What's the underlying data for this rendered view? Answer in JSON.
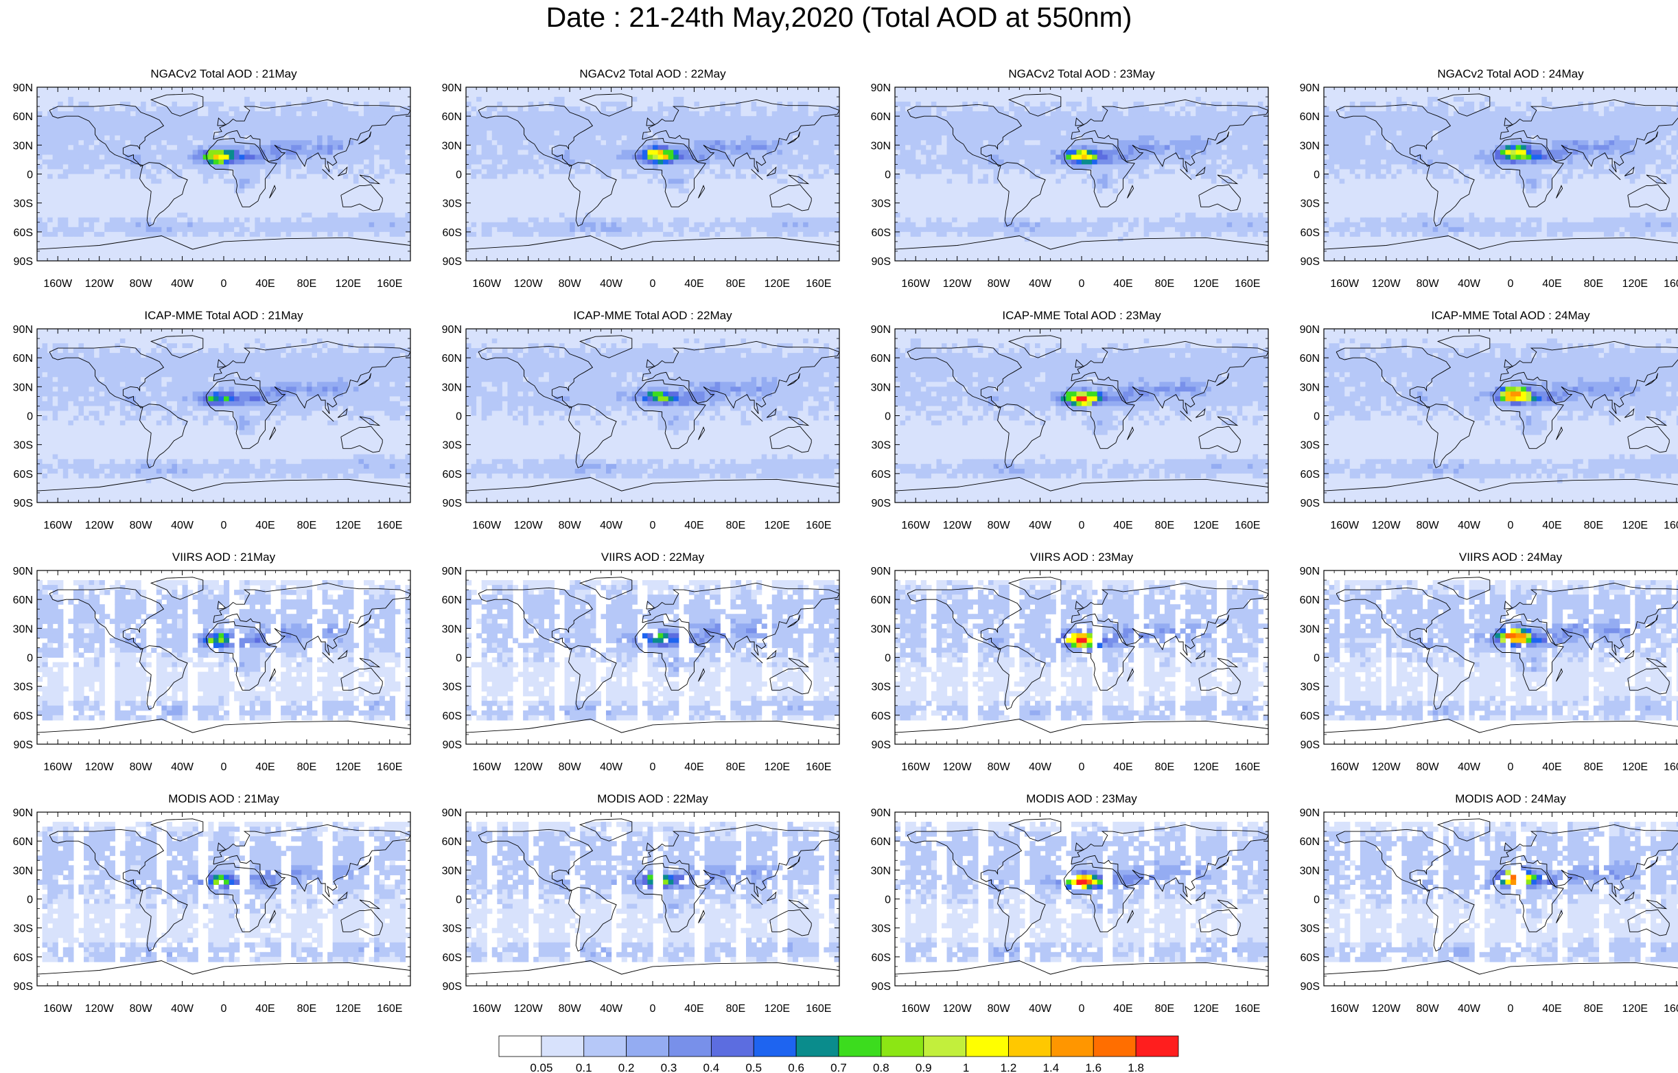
{
  "title": "Date : 21-24th May,2020 (Total AOD at 550nm)",
  "chart_data": {
    "type": "heatmap",
    "layout": "4x4 grid of global maps (equidistant cylindrical)",
    "lon_ticks": [
      "160W",
      "120W",
      "80W",
      "40W",
      "0",
      "40E",
      "80E",
      "120E",
      "160E"
    ],
    "lat_ticks": [
      "90N",
      "60N",
      "30N",
      "0",
      "30S",
      "60S",
      "90S"
    ],
    "xlim": [
      -180,
      180
    ],
    "ylim": [
      -90,
      90
    ],
    "panels": [
      {
        "title": "NGACv2 Total AOD : 21May",
        "source": "NGACv2",
        "day": 21
      },
      {
        "title": "NGACv2 Total AOD : 22May",
        "source": "NGACv2",
        "day": 22
      },
      {
        "title": "NGACv2 Total AOD : 23May",
        "source": "NGACv2",
        "day": 23
      },
      {
        "title": "NGACv2 Total AOD : 24May",
        "source": "NGACv2",
        "day": 24
      },
      {
        "title": "ICAP-MME Total AOD : 21May",
        "source": "ICAP-MME",
        "day": 21
      },
      {
        "title": "ICAP-MME Total AOD : 22May",
        "source": "ICAP-MME",
        "day": 22
      },
      {
        "title": "ICAP-MME Total AOD : 23May",
        "source": "ICAP-MME",
        "day": 23
      },
      {
        "title": "ICAP-MME Total AOD : 24May",
        "source": "ICAP-MME",
        "day": 24
      },
      {
        "title": "VIIRS AOD : 21May",
        "source": "VIIRS",
        "day": 21
      },
      {
        "title": "VIIRS AOD : 22May",
        "source": "VIIRS",
        "day": 22
      },
      {
        "title": "VIIRS AOD : 23May",
        "source": "VIIRS",
        "day": 23
      },
      {
        "title": "VIIRS AOD : 24May",
        "source": "VIIRS",
        "day": 24
      },
      {
        "title": "MODIS AOD : 21May",
        "source": "MODIS",
        "day": 21
      },
      {
        "title": "MODIS AOD : 22May",
        "source": "MODIS",
        "day": 22
      },
      {
        "title": "MODIS AOD : 23May",
        "source": "MODIS",
        "day": 23
      },
      {
        "title": "MODIS AOD : 24May",
        "source": "MODIS",
        "day": 24
      }
    ],
    "colorbar": {
      "labels": [
        "0.05",
        "0.1",
        "0.2",
        "0.3",
        "0.4",
        "0.5",
        "0.6",
        "0.7",
        "0.8",
        "0.9",
        "1",
        "1.2",
        "1.4",
        "1.6",
        "1.8"
      ],
      "colors": [
        "#ffffff",
        "#d8e2fc",
        "#b6c8f8",
        "#94acf2",
        "#7890ea",
        "#5c6de0",
        "#1e64f0",
        "#0a8c8c",
        "#3cdc1e",
        "#8ce614",
        "#c2ef3c",
        "#ffff00",
        "#ffc800",
        "#ff9600",
        "#ff6e00",
        "#ff1e1e"
      ]
    }
  }
}
